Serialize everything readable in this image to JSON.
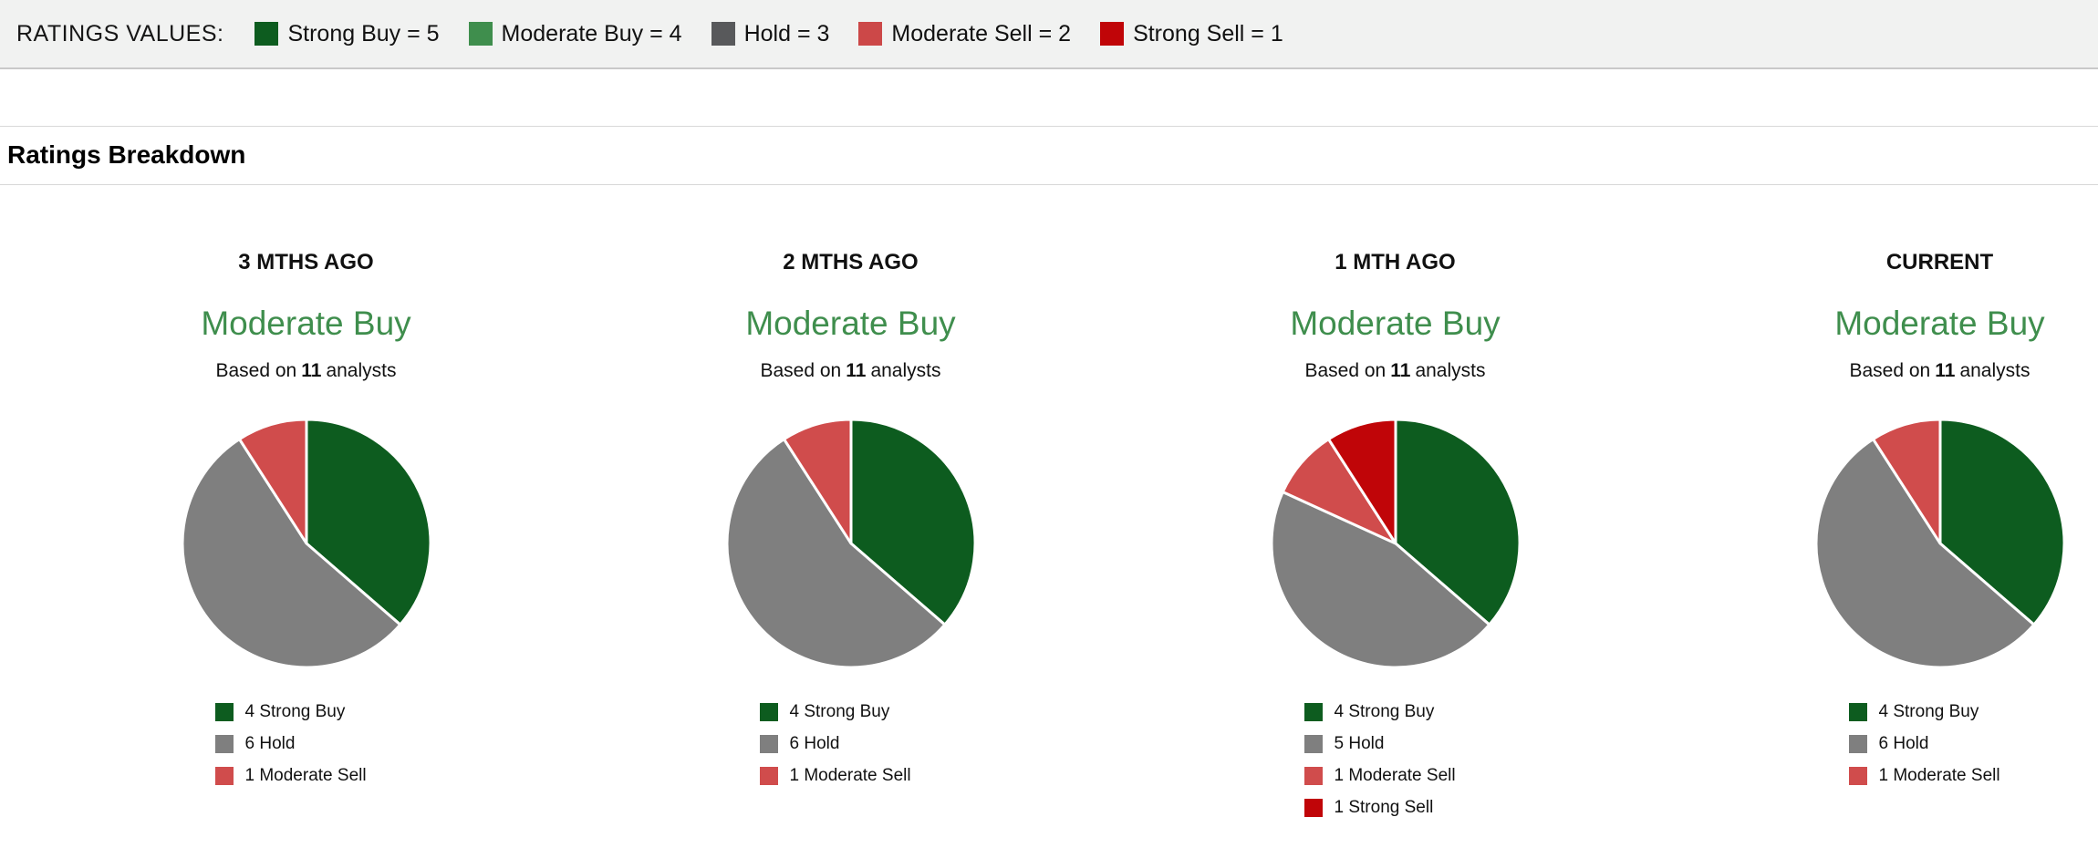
{
  "ratings_values_bar": {
    "label": "RATINGS VALUES:",
    "items": [
      {
        "name": "Strong Buy = 5",
        "color": "#0d5c1f"
      },
      {
        "name": "Moderate Buy = 4",
        "color": "#3f8e4d"
      },
      {
        "name": "Hold = 3",
        "color": "#58595b"
      },
      {
        "name": "Moderate Sell = 2",
        "color": "#cc4848"
      },
      {
        "name": "Strong Sell = 1",
        "color": "#c00508"
      }
    ]
  },
  "section_title": "Ratings Breakdown",
  "strings": {
    "based_on": "Based on",
    "analysts": "analysts"
  },
  "colors": {
    "strong_buy": "#0d5c1f",
    "moderate_buy": "#3f8e4d",
    "hold": "#7f7f7f",
    "moderate_sell": "#d04c4c",
    "strong_sell": "#c00508",
    "consensus_text": "#3f8e4d"
  },
  "chart_data": [
    {
      "type": "pie",
      "period": "3 MTHS AGO",
      "consensus": "Moderate Buy",
      "analysts": "11",
      "start_angle": 0,
      "direction": "clockwise",
      "slices": [
        {
          "label": "Strong Buy",
          "value": 4,
          "color": "#0d5c1f"
        },
        {
          "label": "Hold",
          "value": 6,
          "color": "#7f7f7f"
        },
        {
          "label": "Moderate Sell",
          "value": 1,
          "color": "#d04c4c"
        }
      ]
    },
    {
      "type": "pie",
      "period": "2 MTHS AGO",
      "consensus": "Moderate Buy",
      "analysts": "11",
      "start_angle": 0,
      "direction": "clockwise",
      "slices": [
        {
          "label": "Strong Buy",
          "value": 4,
          "color": "#0d5c1f"
        },
        {
          "label": "Hold",
          "value": 6,
          "color": "#7f7f7f"
        },
        {
          "label": "Moderate Sell",
          "value": 1,
          "color": "#d04c4c"
        }
      ]
    },
    {
      "type": "pie",
      "period": "1 MTH AGO",
      "consensus": "Moderate Buy",
      "analysts": "11",
      "start_angle": 0,
      "direction": "clockwise",
      "slices": [
        {
          "label": "Strong Buy",
          "value": 4,
          "color": "#0d5c1f"
        },
        {
          "label": "Hold",
          "value": 5,
          "color": "#7f7f7f"
        },
        {
          "label": "Moderate Sell",
          "value": 1,
          "color": "#d04c4c"
        },
        {
          "label": "Strong Sell",
          "value": 1,
          "color": "#c00508"
        }
      ]
    },
    {
      "type": "pie",
      "period": "CURRENT",
      "consensus": "Moderate Buy",
      "analysts": "11",
      "start_angle": 0,
      "direction": "clockwise",
      "slices": [
        {
          "label": "Strong Buy",
          "value": 4,
          "color": "#0d5c1f"
        },
        {
          "label": "Hold",
          "value": 6,
          "color": "#7f7f7f"
        },
        {
          "label": "Moderate Sell",
          "value": 1,
          "color": "#d04c4c"
        }
      ]
    }
  ]
}
